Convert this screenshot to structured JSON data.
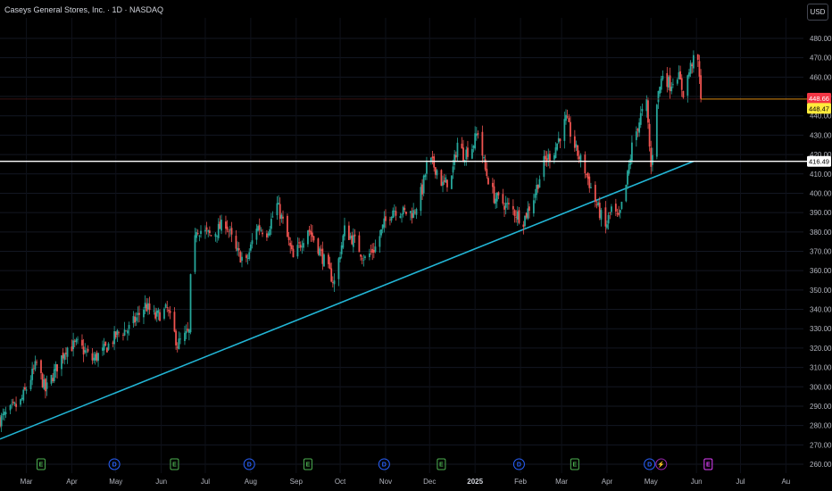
{
  "header": {
    "title": "Caseys General Stores, Inc. · 1D · NASDAQ",
    "currency_button": "USD"
  },
  "colors": {
    "up": "#26a69a",
    "down": "#ef5350",
    "trendline": "#22b5d5",
    "support": "#ffffff",
    "last_price_tag": "#f23645",
    "ask_tag": "#ffeb3b",
    "earnings": "#4caf50",
    "dividend": "#2962ff",
    "split": "#9c27b0",
    "future_earnings": "#e040fb"
  },
  "chart_data": {
    "type": "candlestick",
    "title": "Caseys General Stores, Inc. · 1D · NASDAQ",
    "xlabel": "",
    "ylabel": "",
    "ylim": [
      257,
      485
    ],
    "y_ticks": [
      260,
      270,
      280,
      290,
      300,
      310,
      320,
      330,
      340,
      350,
      360,
      370,
      380,
      390,
      400,
      410,
      420,
      430,
      440,
      450,
      460,
      470,
      480
    ],
    "x_months": [
      "Mar",
      "Apr",
      "May",
      "Jun",
      "Jul",
      "Aug",
      "Sep",
      "Oct",
      "Nov",
      "Dec",
      "2025",
      "Feb",
      "Mar",
      "Apr",
      "May",
      "Jun",
      "Jul",
      "Au"
    ],
    "price_levels": [
      {
        "label": "448.66",
        "value": 448.66,
        "role": "last"
      },
      {
        "label": "448.47",
        "value": 448.47,
        "role": "ask"
      },
      {
        "label": "416.49",
        "value": 416.49,
        "role": "support"
      }
    ],
    "trendline": {
      "start": {
        "date": "2024-02-12",
        "value": 273
      },
      "end": {
        "date": "2025-05-30",
        "value": 416.49
      }
    },
    "waypoints": [
      [
        "2024-02-12",
        283
      ],
      [
        "2024-02-26",
        292
      ],
      [
        "2024-03-08",
        312
      ],
      [
        "2024-03-14",
        298
      ],
      [
        "2024-03-28",
        320
      ],
      [
        "2024-04-05",
        322
      ],
      [
        "2024-04-15",
        314
      ],
      [
        "2024-04-22",
        318
      ],
      [
        "2024-05-03",
        328
      ],
      [
        "2024-05-10",
        330
      ],
      [
        "2024-05-21",
        342
      ],
      [
        "2024-05-28",
        336
      ],
      [
        "2024-06-05",
        340
      ],
      [
        "2024-06-12",
        322
      ],
      [
        "2024-06-20",
        328
      ],
      [
        "2024-06-21",
        355
      ],
      [
        "2024-06-25",
        382
      ],
      [
        "2024-07-05",
        378
      ],
      [
        "2024-07-15",
        385
      ],
      [
        "2024-07-22",
        370
      ],
      [
        "2024-07-29",
        364
      ],
      [
        "2024-08-05",
        383
      ],
      [
        "2024-08-12",
        380
      ],
      [
        "2024-08-19",
        394
      ],
      [
        "2024-08-23",
        385
      ],
      [
        "2024-08-30",
        366
      ],
      [
        "2024-09-09",
        382
      ],
      [
        "2024-09-16",
        372
      ],
      [
        "2024-09-23",
        360
      ],
      [
        "2024-09-27",
        354
      ],
      [
        "2024-10-04",
        381
      ],
      [
        "2024-10-11",
        375
      ],
      [
        "2024-10-18",
        366
      ],
      [
        "2024-10-25",
        372
      ],
      [
        "2024-10-31",
        384
      ],
      [
        "2024-11-06",
        392
      ],
      [
        "2024-11-14",
        390
      ],
      [
        "2024-11-20",
        390
      ],
      [
        "2024-11-26",
        402
      ],
      [
        "2024-11-30",
        418
      ],
      [
        "2024-12-06",
        412
      ],
      [
        "2024-12-10",
        404
      ],
      [
        "2024-12-16",
        408
      ],
      [
        "2024-12-20",
        426
      ],
      [
        "2024-12-24",
        420
      ],
      [
        "2024-12-30",
        424
      ],
      [
        "2025-01-03",
        432
      ],
      [
        "2025-01-08",
        412
      ],
      [
        "2025-01-14",
        398
      ],
      [
        "2025-01-20",
        395
      ],
      [
        "2025-01-27",
        391
      ],
      [
        "2025-02-03",
        386
      ],
      [
        "2025-02-10",
        398
      ],
      [
        "2025-02-17",
        416
      ],
      [
        "2025-02-24",
        422
      ],
      [
        "2025-02-28",
        430
      ],
      [
        "2025-03-04",
        438
      ],
      [
        "2025-03-11",
        422
      ],
      [
        "2025-03-17",
        412
      ],
      [
        "2025-03-24",
        396
      ],
      [
        "2025-03-31",
        382
      ],
      [
        "2025-04-04",
        392
      ],
      [
        "2025-04-09",
        386
      ],
      [
        "2025-04-14",
        404
      ],
      [
        "2025-04-18",
        424
      ],
      [
        "2025-04-24",
        440
      ],
      [
        "2025-04-28",
        446
      ],
      [
        "2025-05-01",
        413
      ],
      [
        "2025-05-05",
        448
      ],
      [
        "2025-05-09",
        462
      ],
      [
        "2025-05-14",
        456
      ],
      [
        "2025-05-19",
        462
      ],
      [
        "2025-05-23",
        452
      ],
      [
        "2025-05-26",
        460
      ],
      [
        "2025-05-29",
        468
      ],
      [
        "2025-06-02",
        468
      ],
      [
        "2025-06-04",
        448.66
      ]
    ],
    "events": [
      {
        "type": "earnings",
        "label": "E",
        "date": "2024-03-11"
      },
      {
        "type": "dividend",
        "label": "D",
        "date": "2024-04-30"
      },
      {
        "type": "earnings",
        "label": "E",
        "date": "2024-06-10"
      },
      {
        "type": "dividend",
        "label": "D",
        "date": "2024-07-31"
      },
      {
        "type": "earnings",
        "label": "E",
        "date": "2024-09-09"
      },
      {
        "type": "dividend",
        "label": "D",
        "date": "2024-10-31"
      },
      {
        "type": "earnings",
        "label": "E",
        "date": "2024-12-09"
      },
      {
        "type": "dividend",
        "label": "D",
        "date": "2025-01-31"
      },
      {
        "type": "earnings",
        "label": "E",
        "date": "2025-03-10"
      },
      {
        "type": "dividend",
        "label": "D",
        "date": "2025-04-30"
      },
      {
        "type": "split",
        "label": "⚡",
        "date": "2025-05-08"
      },
      {
        "type": "future_earnings",
        "label": "E",
        "date": "2025-06-09"
      }
    ]
  }
}
